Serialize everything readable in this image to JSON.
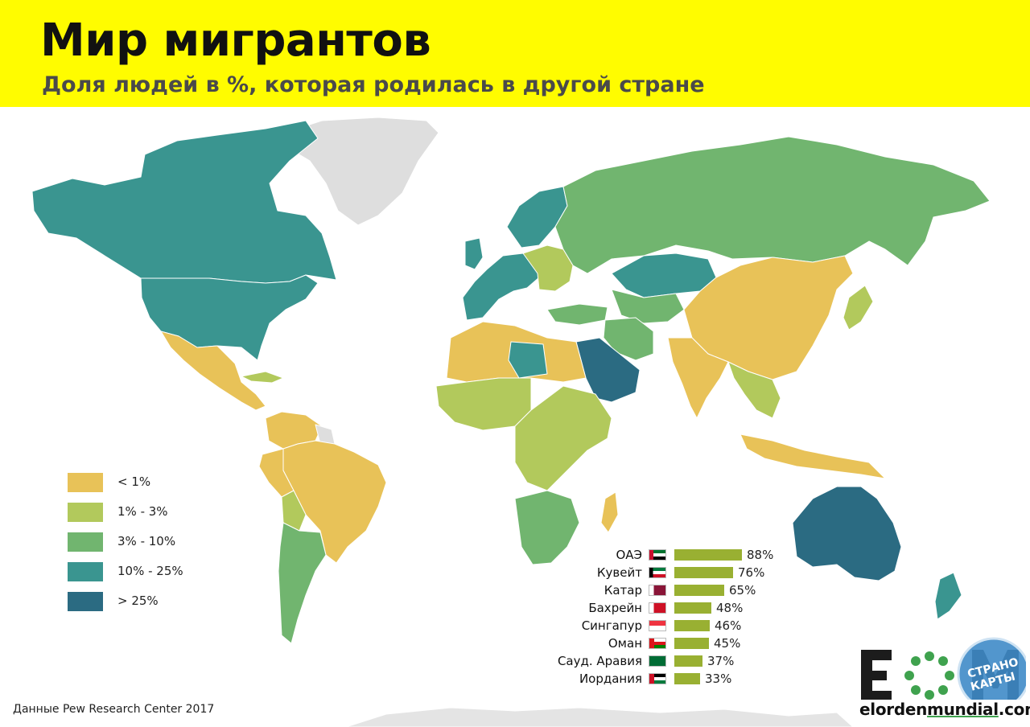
{
  "header": {
    "title": "Мир мигрантов",
    "subtitle": "Доля людей в %, которая родилась в другой стране"
  },
  "colors": {
    "header_bg": "#fffc00",
    "lt1": "#e8c258",
    "p1_3": "#b2c95c",
    "p3_10": "#71b56f",
    "p10_25": "#3a9590",
    "gt25": "#2b6b82",
    "no_data": "#dedede",
    "bar": "#99b032"
  },
  "legend": {
    "items": [
      {
        "label": "< 1%",
        "color": "#e8c258"
      },
      {
        "label": "1% - 3%",
        "color": "#b2c95c"
      },
      {
        "label": "3% - 10%",
        "color": "#71b56f"
      },
      {
        "label": "10% - 25%",
        "color": "#3a9590"
      },
      {
        "label": "> 25%",
        "color": "#2b6b82"
      }
    ]
  },
  "chart_data": {
    "type": "bar",
    "categories": [
      "ОАЭ",
      "Кувейт",
      "Катар",
      "Бахрейн",
      "Сингапур",
      "Оман",
      "Сауд. Аравия",
      "Иордания"
    ],
    "values": [
      88,
      76,
      65,
      48,
      46,
      45,
      37,
      33
    ],
    "value_labels": [
      "88%",
      "76%",
      "65%",
      "48%",
      "46%",
      "45%",
      "37%",
      "33%"
    ],
    "flag_icons": [
      "uae-flag-icon",
      "kuwait-flag-icon",
      "qatar-flag-icon",
      "bahrain-flag-icon",
      "singapore-flag-icon",
      "oman-flag-icon",
      "saudi-arabia-flag-icon",
      "jordan-flag-icon"
    ]
  },
  "source": "Данные Pew Research Center 2017",
  "logo": {
    "letters": "EOM",
    "site_pre": "elorden",
    "site_ul": "mundial",
    "site_post": ".com",
    "badge_line1": "СТРАНО",
    "badge_line2": "КАРТЫ"
  }
}
